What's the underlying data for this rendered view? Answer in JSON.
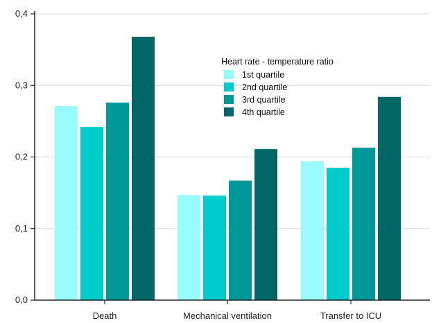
{
  "chart_data": {
    "type": "bar",
    "categories": [
      "Death",
      "Mechanical ventilation",
      "Transfer to ICU"
    ],
    "series": [
      {
        "name": "1st quartile",
        "color": "#99fcfc",
        "values": [
          0.271,
          0.147,
          0.194
        ]
      },
      {
        "name": "2nd quartile",
        "color": "#00cccc",
        "values": [
          0.242,
          0.146,
          0.185
        ]
      },
      {
        "name": "3rd quartile",
        "color": "#009999",
        "values": [
          0.276,
          0.167,
          0.213
        ]
      },
      {
        "name": "4th quartile",
        "color": "#006666",
        "values": [
          0.368,
          0.211,
          0.284
        ]
      }
    ],
    "ylim": [
      0,
      0.4
    ],
    "yticks": [
      {
        "value": 0.0,
        "label": "0,0"
      },
      {
        "value": 0.1,
        "label": "0,1"
      },
      {
        "value": 0.2,
        "label": "0,2"
      },
      {
        "value": 0.3,
        "label": "0,3"
      },
      {
        "value": 0.4,
        "label": "0,4"
      }
    ],
    "grid": true,
    "legend": {
      "title": "Heart rate - temperature ratio",
      "placement": "top-right"
    }
  }
}
